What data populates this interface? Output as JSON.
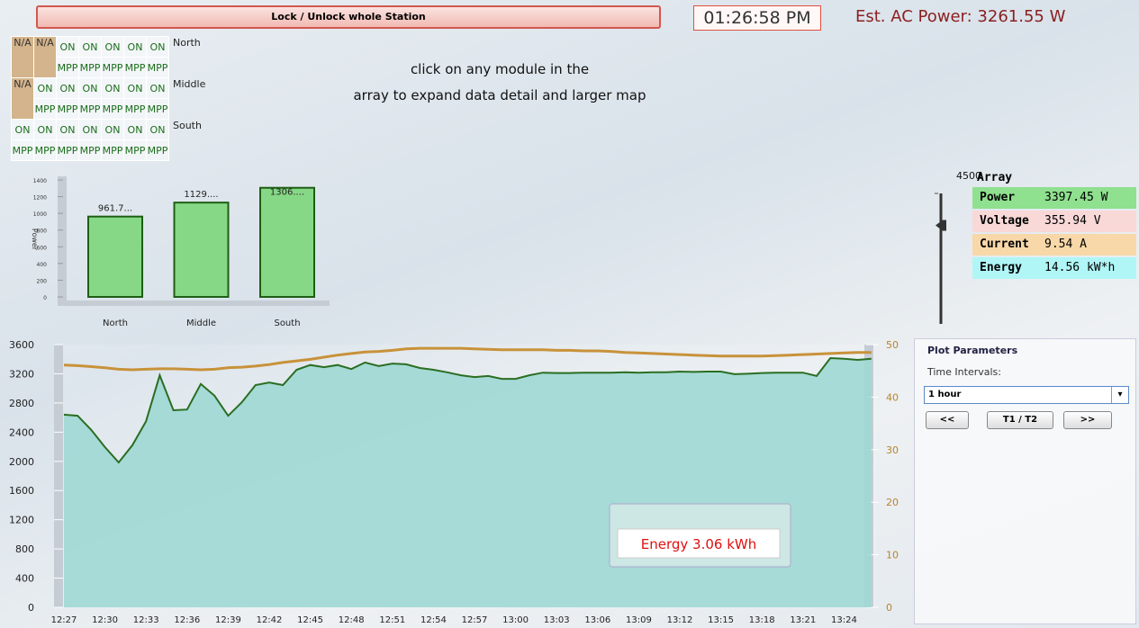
{
  "header": {
    "lock_button": "Lock / Unlock whole Station",
    "clock": "01:26:58 PM",
    "ac_power": "Est. AC Power: 3261.55 W"
  },
  "array_grid": {
    "rows": [
      {
        "label": "North",
        "modules": [
          {
            "status": "N/A"
          },
          {
            "status": "N/A"
          },
          {
            "status": "ON",
            "mode": "MPP"
          },
          {
            "status": "ON",
            "mode": "MPP"
          },
          {
            "status": "ON",
            "mode": "MPP"
          },
          {
            "status": "ON",
            "mode": "MPP"
          },
          {
            "status": "ON",
            "mode": "MPP"
          }
        ]
      },
      {
        "label": "Middle",
        "modules": [
          {
            "status": "N/A"
          },
          {
            "status": "ON",
            "mode": "MPP"
          },
          {
            "status": "ON",
            "mode": "MPP"
          },
          {
            "status": "ON",
            "mode": "MPP"
          },
          {
            "status": "ON",
            "mode": "MPP"
          },
          {
            "status": "ON",
            "mode": "MPP"
          },
          {
            "status": "ON",
            "mode": "MPP"
          }
        ]
      },
      {
        "label": "South",
        "modules": [
          {
            "status": "ON",
            "mode": "MPP"
          },
          {
            "status": "ON",
            "mode": "MPP"
          },
          {
            "status": "ON",
            "mode": "MPP"
          },
          {
            "status": "ON",
            "mode": "MPP"
          },
          {
            "status": "ON",
            "mode": "MPP"
          },
          {
            "status": "ON",
            "mode": "MPP"
          },
          {
            "status": "ON",
            "mode": "MPP"
          }
        ]
      }
    ],
    "hint": [
      "click on any module in the",
      "array to expand data detail and larger map"
    ]
  },
  "bar_chart": {
    "type": "bar",
    "y_label": "Power",
    "categories": [
      "North",
      "Middle",
      "South"
    ],
    "values": [
      961.7,
      1129,
      1306
    ],
    "value_labels": [
      "961.7...",
      "1129....",
      "1306...."
    ],
    "color": "#86d886",
    "ylim": [
      0,
      1400
    ],
    "yticks": [
      0,
      200,
      400,
      600,
      800,
      1000,
      1200,
      1400
    ]
  },
  "array_panel": {
    "title": "Array",
    "gauge": {
      "lim": [
        0,
        4500
      ],
      "ticks": [
        4500
      ],
      "value": 3397.45
    },
    "rows": [
      {
        "label": "Power",
        "value": "3397.45 W",
        "color": "#8fe08f"
      },
      {
        "label": "Voltage",
        "value": "355.94 V",
        "color": "#f9d8d8"
      },
      {
        "label": "Current",
        "value": "9.54 A",
        "color": "#f8d8a8"
      },
      {
        "label": "Energy",
        "value": "14.56 kW*h",
        "color": "#b0f6f6"
      }
    ]
  },
  "main_chart": {
    "type": "line",
    "categories": [
      "12:27",
      null,
      null,
      "12:30",
      null,
      null,
      "12:33",
      null,
      null,
      "12:36",
      null,
      null,
      "12:39",
      null,
      null,
      "12:42",
      null,
      null,
      "12:45",
      null,
      null,
      "12:48",
      null,
      null,
      "12:51",
      null,
      null,
      "12:54",
      null,
      null,
      "12:57",
      null,
      null,
      "13:00",
      null,
      null,
      "13:03",
      null,
      null,
      "13:06",
      null,
      null,
      "13:09",
      null,
      null,
      "13:12",
      null,
      null,
      "13:15",
      null,
      null,
      "13:18",
      null,
      null,
      "13:21",
      null,
      null,
      "13:24",
      null,
      null
    ],
    "series": [
      {
        "color": "#2a6e22",
        "fill": "#9ed8d4",
        "values": [
          2640,
          2625,
          2430,
          2195,
          1985,
          2220,
          2550,
          3180,
          2700,
          2710,
          3060,
          2900,
          2625,
          2810,
          3045,
          3080,
          3045,
          3255,
          3320,
          3290,
          3320,
          3265,
          3355,
          3305,
          3340,
          3330,
          3280,
          3255,
          3220,
          3180,
          3155,
          3170,
          3130,
          3130,
          3180,
          3215,
          3210,
          3210,
          3215,
          3215,
          3215,
          3220,
          3215,
          3220,
          3220,
          3230,
          3225,
          3230,
          3230,
          3195,
          3200,
          3210,
          3215,
          3215,
          3215,
          3170,
          3415,
          3405,
          3390,
          3405
        ]
      },
      {
        "color": "#c8923a",
        "axis": "y2",
        "values": [
          46.1,
          46.0,
          45.8,
          45.6,
          45.3,
          45.2,
          45.3,
          45.4,
          45.4,
          45.3,
          45.2,
          45.3,
          45.6,
          45.7,
          45.9,
          46.2,
          46.6,
          46.9,
          47.2,
          47.6,
          48.0,
          48.3,
          48.6,
          48.7,
          48.9,
          49.2,
          49.3,
          49.3,
          49.3,
          49.3,
          49.2,
          49.1,
          49.0,
          49.0,
          49.0,
          49.0,
          48.9,
          48.9,
          48.8,
          48.8,
          48.7,
          48.5,
          48.4,
          48.3,
          48.2,
          48.1,
          48.0,
          47.9,
          47.8,
          47.8,
          47.8,
          47.8,
          47.9,
          48.0,
          48.1,
          48.2,
          48.3,
          48.4,
          48.5,
          48.5
        ]
      }
    ],
    "ylim": [
      0,
      3600
    ],
    "yticks": [
      0,
      400,
      800,
      1200,
      1600,
      2000,
      2400,
      2800,
      3200,
      3600
    ],
    "y2lim": [
      0,
      50
    ],
    "y2ticks": [
      0,
      10,
      20,
      30,
      40,
      50
    ],
    "annotation": "Energy 3.06 kWh"
  },
  "plot_parameters": {
    "title": "Plot Parameters",
    "interval_label": "Time Intervals:",
    "interval": "1 hour",
    "buttons": [
      "<<",
      "T1 / T2",
      ">>"
    ]
  }
}
